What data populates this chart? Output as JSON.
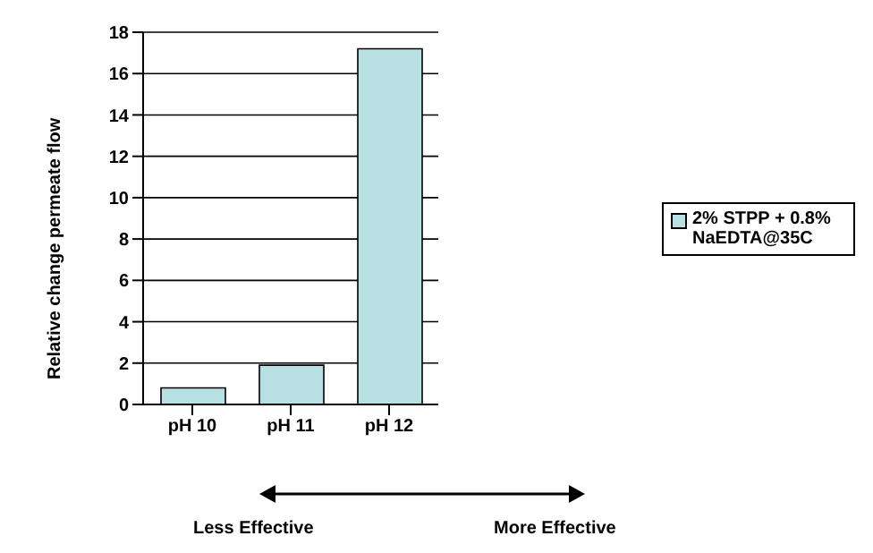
{
  "chart_data": {
    "type": "bar",
    "ylabel": "Relative change permeate flow",
    "categories": [
      "pH 10",
      "pH 11",
      "pH 12"
    ],
    "series": [
      {
        "name": "2% STPP + 0.8% NaEDTA@35C",
        "color": "#b8e0e3",
        "values": [
          0.8,
          1.9,
          17.2
        ]
      }
    ],
    "ylim": [
      0,
      18
    ],
    "yticks": [
      0,
      2,
      4,
      6,
      8,
      10,
      12,
      14,
      16,
      18
    ],
    "grid": "y",
    "legend": "right",
    "annotations": [
      "Less Effective",
      "More Effective"
    ]
  }
}
